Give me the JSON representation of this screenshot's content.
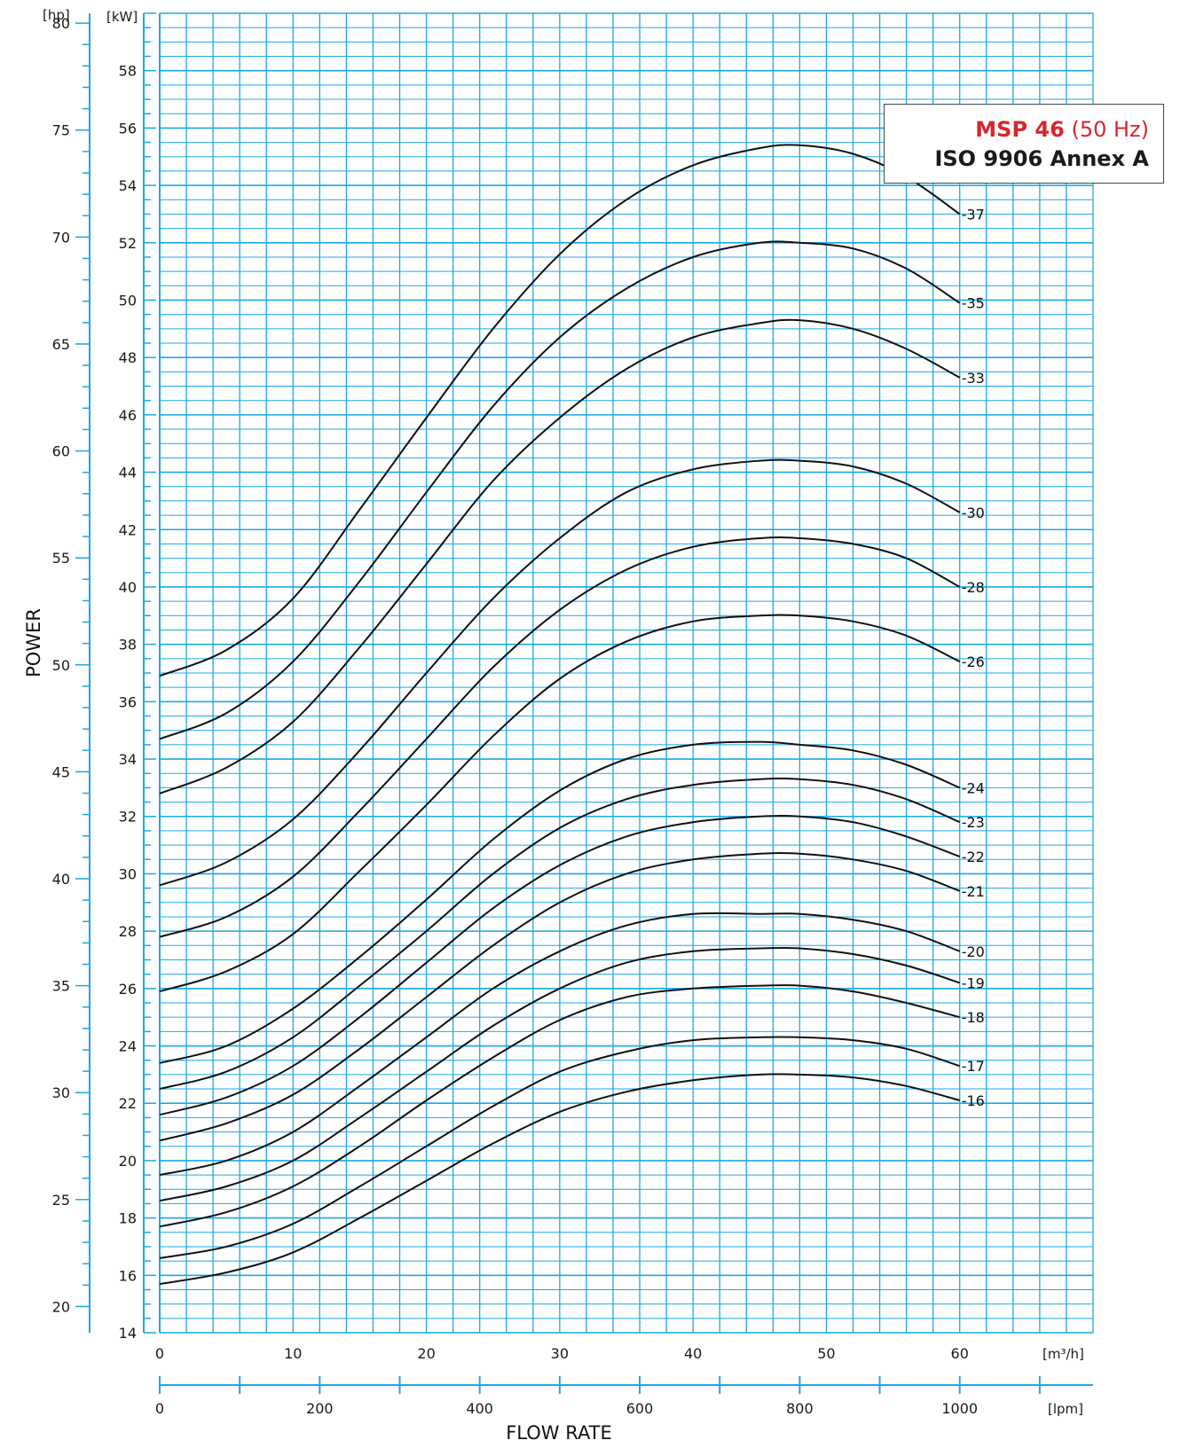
{
  "chart_data": {
    "type": "line",
    "title": {
      "model": "MSP 46",
      "frequency": "(50 Hz)",
      "standard": "ISO 9906 Annex A"
    },
    "colors": {
      "grid": "#1ca8e6",
      "curve": "#111111",
      "title_accent": "#d7262e"
    },
    "ylabel": "POWER",
    "xlabel": "FLOW RATE",
    "y_unit_kw": "[kW]",
    "y_unit_hp": "[hp]",
    "x_unit_m3h": "[m³/h]",
    "x_unit_lpm": "[lpm]",
    "ylim_kw": [
      14,
      60
    ],
    "xlim_m3h": [
      0,
      70
    ],
    "xlim_lpm": [
      0,
      1166
    ],
    "yticks_kw": [
      14,
      16,
      18,
      20,
      22,
      24,
      26,
      28,
      30,
      32,
      34,
      36,
      38,
      40,
      42,
      44,
      46,
      48,
      50,
      52,
      54,
      56,
      58
    ],
    "yticks_hp": [
      20,
      25,
      30,
      35,
      40,
      45,
      50,
      55,
      60,
      65,
      70,
      75,
      80
    ],
    "xticks_m3h": [
      0,
      10,
      20,
      30,
      40,
      50,
      60
    ],
    "xticks_lpm": [
      0,
      200,
      400,
      600,
      800,
      1000
    ],
    "grid": true,
    "x": [
      0,
      5,
      10,
      15,
      20,
      25,
      30,
      35,
      40,
      45,
      48,
      52,
      56,
      60
    ],
    "series": [
      {
        "name": "37",
        "values": [
          36.9,
          37.8,
          39.6,
          42.7,
          45.9,
          49.0,
          51.6,
          53.5,
          54.7,
          55.3,
          55.4,
          55.1,
          54.3,
          53.0
        ]
      },
      {
        "name": "35",
        "values": [
          34.7,
          35.6,
          37.4,
          40.2,
          43.3,
          46.3,
          48.7,
          50.4,
          51.5,
          52.0,
          52.0,
          51.8,
          51.1,
          49.9
        ]
      },
      {
        "name": "33",
        "values": [
          32.8,
          33.7,
          35.3,
          37.9,
          40.8,
          43.7,
          45.9,
          47.6,
          48.7,
          49.2,
          49.3,
          49.0,
          48.3,
          47.3
        ]
      },
      {
        "name": "30",
        "values": [
          29.6,
          30.4,
          31.9,
          34.3,
          37.0,
          39.6,
          41.7,
          43.3,
          44.1,
          44.4,
          44.4,
          44.2,
          43.6,
          42.6
        ]
      },
      {
        "name": "28",
        "values": [
          27.8,
          28.5,
          29.9,
          32.2,
          34.7,
          37.2,
          39.2,
          40.6,
          41.4,
          41.7,
          41.7,
          41.5,
          41.0,
          40.0
        ]
      },
      {
        "name": "26",
        "values": [
          25.9,
          26.6,
          27.9,
          30.1,
          32.4,
          34.8,
          36.8,
          38.1,
          38.8,
          39.0,
          39.0,
          38.8,
          38.3,
          37.4
        ]
      },
      {
        "name": "24",
        "values": [
          23.4,
          24.0,
          25.3,
          27.1,
          29.1,
          31.2,
          32.9,
          34.0,
          34.5,
          34.6,
          34.5,
          34.3,
          33.8,
          33.0
        ]
      },
      {
        "name": "23",
        "values": [
          22.5,
          23.1,
          24.3,
          26.1,
          28.0,
          30.0,
          31.6,
          32.6,
          33.1,
          33.3,
          33.3,
          33.1,
          32.6,
          31.8
        ]
      },
      {
        "name": "22",
        "values": [
          21.6,
          22.2,
          23.3,
          25.0,
          26.9,
          28.8,
          30.3,
          31.3,
          31.8,
          32.0,
          32.0,
          31.8,
          31.3,
          30.6
        ]
      },
      {
        "name": "21",
        "values": [
          20.7,
          21.3,
          22.3,
          23.9,
          25.7,
          27.5,
          29.0,
          30.0,
          30.5,
          30.7,
          30.7,
          30.5,
          30.1,
          29.4
        ]
      },
      {
        "name": "20",
        "values": [
          19.5,
          20.0,
          21.0,
          22.6,
          24.3,
          26.0,
          27.3,
          28.2,
          28.6,
          28.6,
          28.6,
          28.4,
          28.0,
          27.3
        ]
      },
      {
        "name": "19",
        "values": [
          18.6,
          19.1,
          20.0,
          21.5,
          23.1,
          24.7,
          26.0,
          26.9,
          27.3,
          27.4,
          27.4,
          27.2,
          26.8,
          26.2
        ]
      },
      {
        "name": "18",
        "values": [
          17.7,
          18.2,
          19.1,
          20.5,
          22.1,
          23.6,
          24.9,
          25.7,
          26.0,
          26.1,
          26.1,
          25.9,
          25.5,
          25.0
        ]
      },
      {
        "name": "17",
        "values": [
          16.6,
          17.0,
          17.8,
          19.1,
          20.5,
          21.9,
          23.1,
          23.8,
          24.2,
          24.3,
          24.3,
          24.2,
          23.9,
          23.3
        ]
      },
      {
        "name": "16",
        "values": [
          15.7,
          16.1,
          16.8,
          18.0,
          19.3,
          20.6,
          21.7,
          22.4,
          22.8,
          23.0,
          23.0,
          22.9,
          22.6,
          22.1
        ]
      }
    ]
  }
}
